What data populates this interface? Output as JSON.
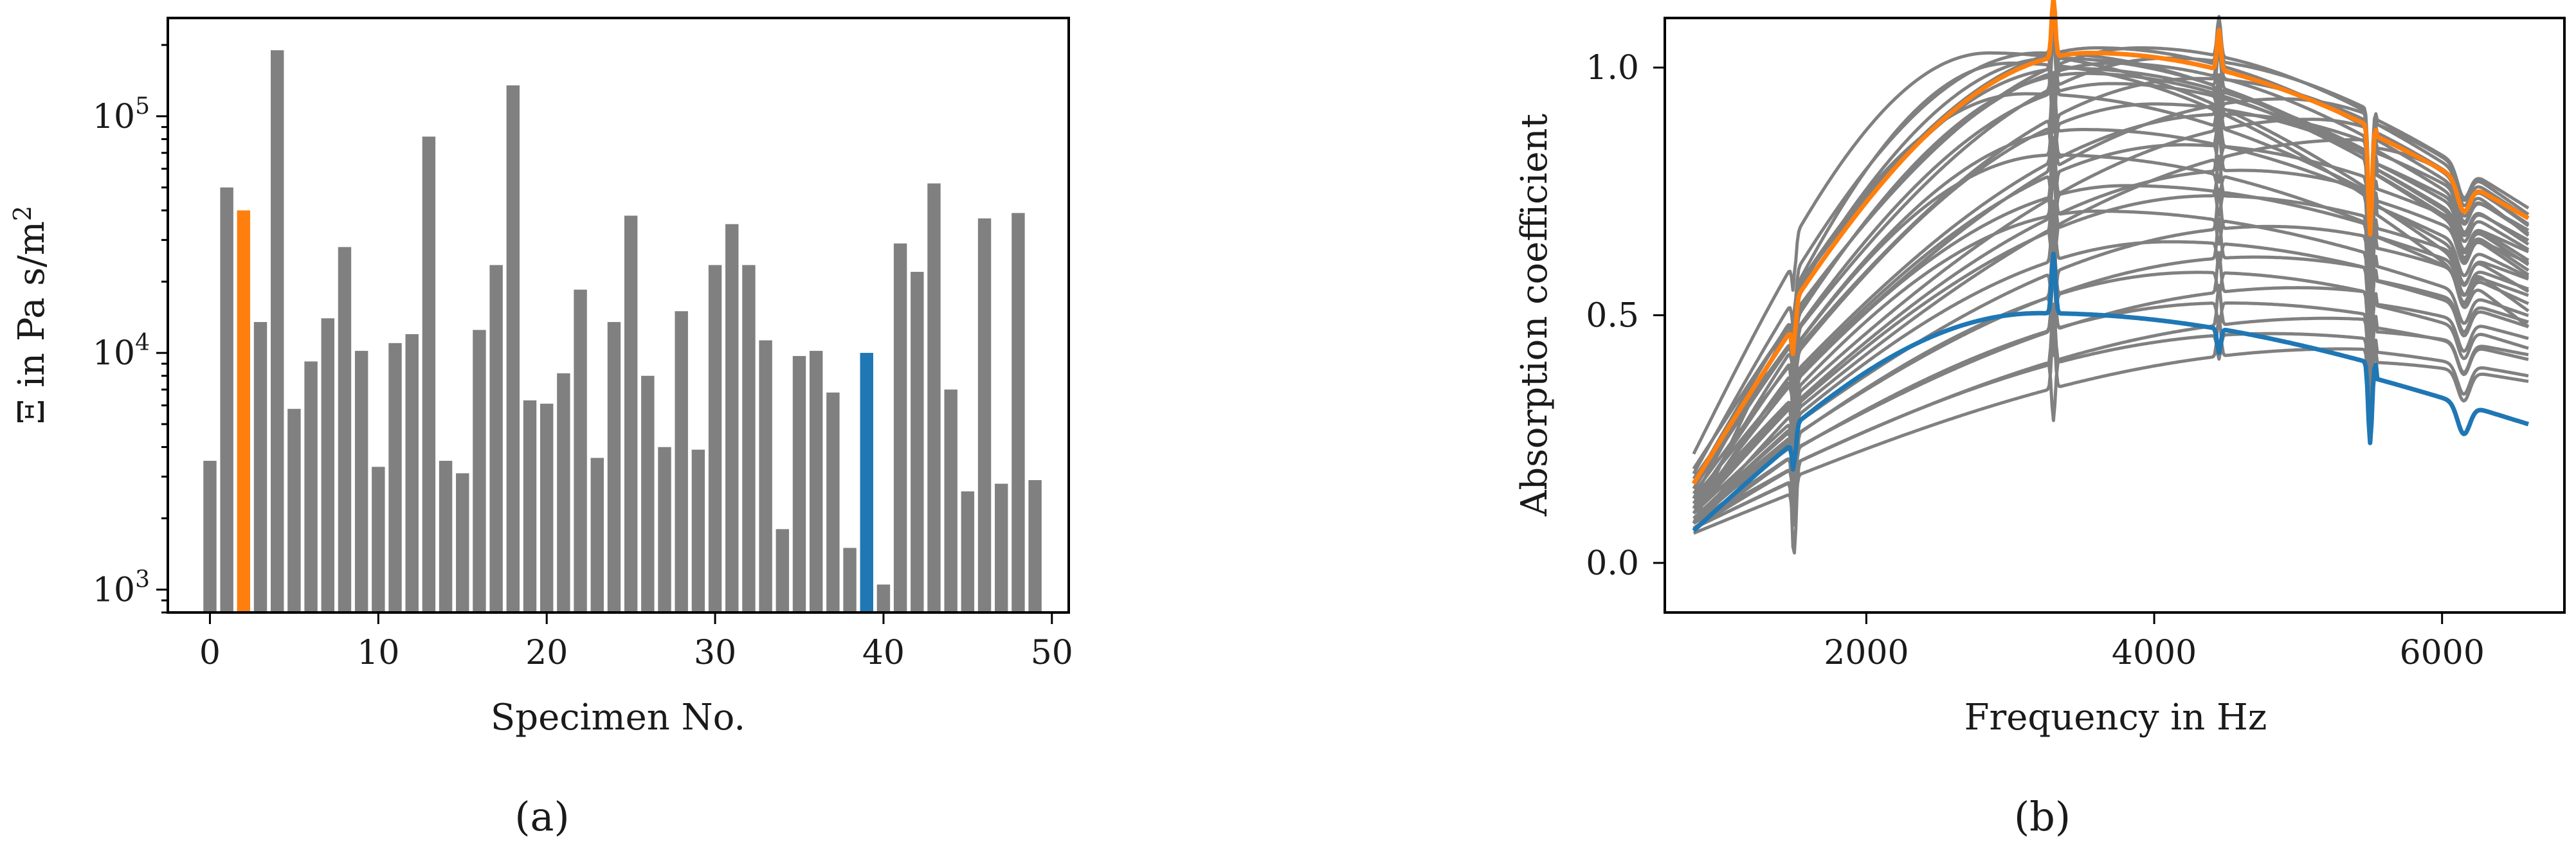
{
  "figure": {
    "caption_a": "(a)",
    "caption_b": "(b)"
  },
  "colors": {
    "gray": "#808080",
    "orange": "#ff7f0e",
    "blue": "#1f77b4",
    "frame": "#000000"
  },
  "chart_data": [
    {
      "type": "bar",
      "title": "",
      "xlabel": "Specimen No.",
      "ylabel": "Ξ in Pa s/m²",
      "yscale": "log",
      "ylim": [
        800,
        260000
      ],
      "xlim": [
        -2.5,
        51
      ],
      "xticks": [
        0,
        10,
        20,
        30,
        40,
        50
      ],
      "yticks": [
        {
          "value": 1000,
          "base": "10",
          "exp": "3"
        },
        {
          "value": 10000,
          "base": "10",
          "exp": "4"
        },
        {
          "value": 100000,
          "base": "10",
          "exp": "5"
        }
      ],
      "grid": false,
      "highlight": {
        "2": "orange",
        "39": "blue"
      },
      "categories": [
        0,
        1,
        2,
        3,
        4,
        5,
        6,
        7,
        8,
        9,
        10,
        11,
        12,
        13,
        14,
        15,
        16,
        17,
        18,
        19,
        20,
        21,
        22,
        23,
        24,
        25,
        26,
        27,
        28,
        29,
        30,
        31,
        32,
        33,
        34,
        35,
        36,
        37,
        38,
        39,
        40,
        41,
        42,
        43,
        44,
        45,
        46,
        47,
        48,
        49
      ],
      "values": [
        3500,
        50000,
        40000,
        13500,
        190000,
        5800,
        9200,
        14000,
        28000,
        10200,
        3300,
        11000,
        12000,
        82000,
        3500,
        3100,
        12500,
        23500,
        135000,
        6300,
        6100,
        8200,
        18500,
        3600,
        13500,
        38000,
        8000,
        4000,
        15000,
        3900,
        23500,
        35000,
        23500,
        11300,
        1800,
        9700,
        10200,
        6800,
        1500,
        10000,
        1050,
        29000,
        22000,
        52000,
        7000,
        2600,
        37000,
        2800,
        39000,
        2900
      ]
    },
    {
      "type": "line",
      "title": "",
      "xlabel": "Frequency in Hz",
      "ylabel": "Absorption coefficient",
      "xlim": [
        600,
        6850
      ],
      "ylim": [
        -0.1,
        1.1
      ],
      "xticks": [
        2000,
        4000,
        6000
      ],
      "yticks": [
        "0.0",
        "0.5",
        "1.0"
      ],
      "grid": false,
      "sharp_features_hz": [
        1500,
        3300,
        4450,
        5500,
        6150
      ],
      "x_range": [
        800,
        6600
      ],
      "series": [
        {
          "color": "gray",
          "lo": 0.19,
          "peak": 0.99,
          "fpeak": 3600,
          "hi": 0.63
        },
        {
          "color": "gray",
          "lo": 0.18,
          "peak": 0.98,
          "fpeak": 3200,
          "hi": 0.55
        },
        {
          "color": "gray",
          "lo": 0.17,
          "peak": 0.99,
          "fpeak": 3900,
          "hi": 0.66
        },
        {
          "color": "gray",
          "lo": 0.22,
          "peak": 0.98,
          "fpeak": 2850,
          "hi": 0.48
        },
        {
          "color": "gray",
          "lo": 0.14,
          "peak": 0.97,
          "fpeak": 4100,
          "hi": 0.68
        },
        {
          "color": "gray",
          "lo": 0.15,
          "peak": 0.95,
          "fpeak": 3400,
          "hi": 0.6
        },
        {
          "color": "gray",
          "lo": 0.13,
          "peak": 0.93,
          "fpeak": 4300,
          "hi": 0.65
        },
        {
          "color": "gray",
          "lo": 0.12,
          "peak": 0.92,
          "fpeak": 3700,
          "hi": 0.58
        },
        {
          "color": "gray",
          "lo": 0.16,
          "peak": 0.9,
          "fpeak": 3100,
          "hi": 0.52
        },
        {
          "color": "gray",
          "lo": 0.11,
          "peak": 0.88,
          "fpeak": 4000,
          "hi": 0.62
        },
        {
          "color": "gray",
          "lo": 0.12,
          "peak": 0.86,
          "fpeak": 4500,
          "hi": 0.64
        },
        {
          "color": "gray",
          "lo": 0.1,
          "peak": 0.83,
          "fpeak": 3500,
          "hi": 0.55
        },
        {
          "color": "gray",
          "lo": 0.11,
          "peak": 0.8,
          "fpeak": 4200,
          "hi": 0.6
        },
        {
          "color": "gray",
          "lo": 0.1,
          "peak": 0.78,
          "fpeak": 3300,
          "hi": 0.5
        },
        {
          "color": "gray",
          "lo": 0.09,
          "peak": 0.75,
          "fpeak": 4600,
          "hi": 0.58
        },
        {
          "color": "gray",
          "lo": 0.1,
          "peak": 0.72,
          "fpeak": 3800,
          "hi": 0.53
        },
        {
          "color": "gray",
          "lo": 0.09,
          "peak": 0.7,
          "fpeak": 4400,
          "hi": 0.55
        },
        {
          "color": "gray",
          "lo": 0.08,
          "peak": 0.67,
          "fpeak": 3600,
          "hi": 0.48
        },
        {
          "color": "gray",
          "lo": 0.09,
          "peak": 0.64,
          "fpeak": 4800,
          "hi": 0.52
        },
        {
          "color": "gray",
          "lo": 0.08,
          "peak": 0.61,
          "fpeak": 4100,
          "hi": 0.46
        },
        {
          "color": "gray",
          "lo": 0.08,
          "peak": 0.58,
          "fpeak": 4700,
          "hi": 0.47
        },
        {
          "color": "gray",
          "lo": 0.07,
          "peak": 0.55,
          "fpeak": 4300,
          "hi": 0.42
        },
        {
          "color": "gray",
          "lo": 0.08,
          "peak": 0.52,
          "fpeak": 5000,
          "hi": 0.44
        },
        {
          "color": "gray",
          "lo": 0.07,
          "peak": 0.49,
          "fpeak": 4500,
          "hi": 0.4
        },
        {
          "color": "gray",
          "lo": 0.07,
          "peak": 0.46,
          "fpeak": 5200,
          "hi": 0.41
        },
        {
          "color": "gray",
          "lo": 0.07,
          "peak": 0.43,
          "fpeak": 4800,
          "hi": 0.37
        },
        {
          "color": "gray",
          "lo": 0.06,
          "peak": 0.4,
          "fpeak": 5300,
          "hi": 0.36
        },
        {
          "color": "gray",
          "lo": 0.08,
          "peak": 0.96,
          "fpeak": 3000,
          "hi": 0.45
        },
        {
          "color": "gray",
          "lo": 0.13,
          "peak": 0.97,
          "fpeak": 3300,
          "hi": 0.57
        },
        {
          "color": "gray",
          "lo": 0.11,
          "peak": 0.94,
          "fpeak": 3500,
          "hi": 0.56
        },
        {
          "color": "gray",
          "lo": 0.15,
          "peak": 0.96,
          "fpeak": 3700,
          "hi": 0.61
        },
        {
          "color": "gray",
          "lo": 0.12,
          "peak": 0.89,
          "fpeak": 4900,
          "hi": 0.67
        },
        {
          "color": "gray",
          "lo": 0.1,
          "peak": 0.85,
          "fpeak": 5100,
          "hi": 0.63
        },
        {
          "color": "gray",
          "lo": 0.09,
          "peak": 0.81,
          "fpeak": 5400,
          "hi": 0.65
        },
        {
          "color": "orange",
          "lo": 0.16,
          "peak": 0.98,
          "fpeak": 3550,
          "hi": 0.66
        },
        {
          "color": "blue",
          "lo": 0.065,
          "peak": 0.47,
          "fpeak": 3200,
          "hi": 0.275
        }
      ]
    }
  ]
}
